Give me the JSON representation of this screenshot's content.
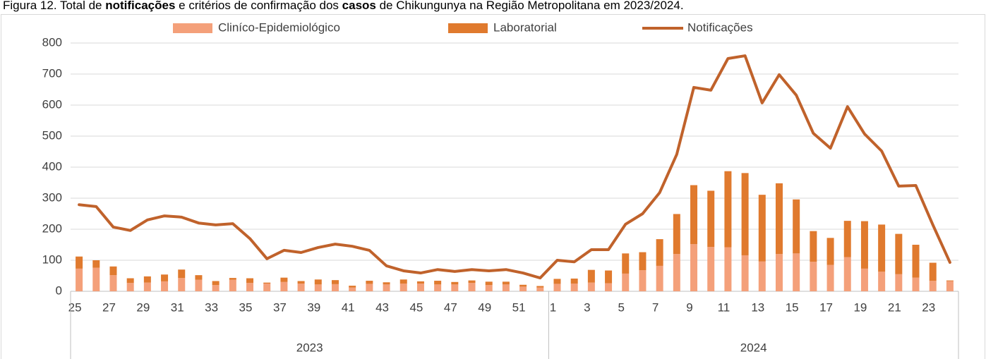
{
  "chart_data": {
    "type": "bar",
    "title_segments": [
      {
        "text": "Figura 12. Total de ",
        "bold": false
      },
      {
        "text": "notificações",
        "bold": true
      },
      {
        "text": " e critérios de confirmação dos ",
        "bold": false
      },
      {
        "text": "casos",
        "bold": true
      },
      {
        "text": " de Chikungunya na Região Metropolitana em 2023/2024.",
        "bold": false
      }
    ],
    "categories": [
      "25",
      null,
      "27",
      null,
      "29",
      null,
      "31",
      null,
      "33",
      null,
      "35",
      null,
      "37",
      null,
      "39",
      null,
      "41",
      null,
      "43",
      null,
      "45",
      null,
      "47",
      null,
      "49",
      null,
      "51",
      null,
      "1",
      null,
      "3",
      null,
      "5",
      null,
      "7",
      null,
      "9",
      null,
      "11",
      null,
      "13",
      null,
      "15",
      null,
      "17",
      null,
      "19",
      null,
      "21",
      null,
      "23",
      null
    ],
    "groups": [
      {
        "label": "2023",
        "span": 28
      },
      {
        "label": "2024",
        "span": 24
      }
    ],
    "series": [
      {
        "name": "Cliníco-Epidemiológico",
        "type": "bar",
        "color": "#f4a07a",
        "values": [
          73,
          76,
          52,
          27,
          28,
          32,
          43,
          37,
          20,
          37,
          27,
          25,
          30,
          25,
          22,
          23,
          12,
          24,
          22,
          25,
          25,
          22,
          22,
          27,
          20,
          22,
          15,
          12,
          24,
          25,
          28,
          26,
          57,
          68,
          82,
          120,
          152,
          143,
          142,
          116,
          96,
          120,
          122,
          95,
          85,
          110,
          73,
          63,
          55,
          44,
          34,
          33
        ]
      },
      {
        "name": "Laboratorial",
        "type": "bar",
        "color": "#e07a2e",
        "values": [
          39,
          24,
          28,
          15,
          20,
          22,
          27,
          15,
          13,
          6,
          15,
          3,
          14,
          8,
          16,
          13,
          6,
          10,
          7,
          13,
          7,
          12,
          8,
          8,
          11,
          9,
          6,
          5,
          16,
          16,
          41,
          41,
          65,
          58,
          86,
          129,
          190,
          181,
          245,
          265,
          215,
          228,
          174,
          99,
          87,
          117,
          153,
          152,
          130,
          106,
          58,
          2
        ]
      },
      {
        "name": "Notificações",
        "type": "line",
        "color": "#c0622b",
        "values": [
          279,
          273,
          207,
          196,
          230,
          243,
          239,
          220,
          214,
          218,
          170,
          105,
          132,
          125,
          141,
          152,
          145,
          132,
          82,
          66,
          59,
          70,
          64,
          70,
          66,
          70,
          59,
          43,
          100,
          95,
          134,
          134,
          216,
          250,
          318,
          441,
          657,
          648,
          750,
          759,
          607,
          698,
          632,
          509,
          461,
          595,
          507,
          452,
          339,
          341,
          214,
          93
        ]
      }
    ],
    "ylim": [
      0,
      800
    ],
    "yticks": [
      0,
      100,
      200,
      300,
      400,
      500,
      600,
      700,
      800
    ],
    "grid": true,
    "legend": "top"
  }
}
